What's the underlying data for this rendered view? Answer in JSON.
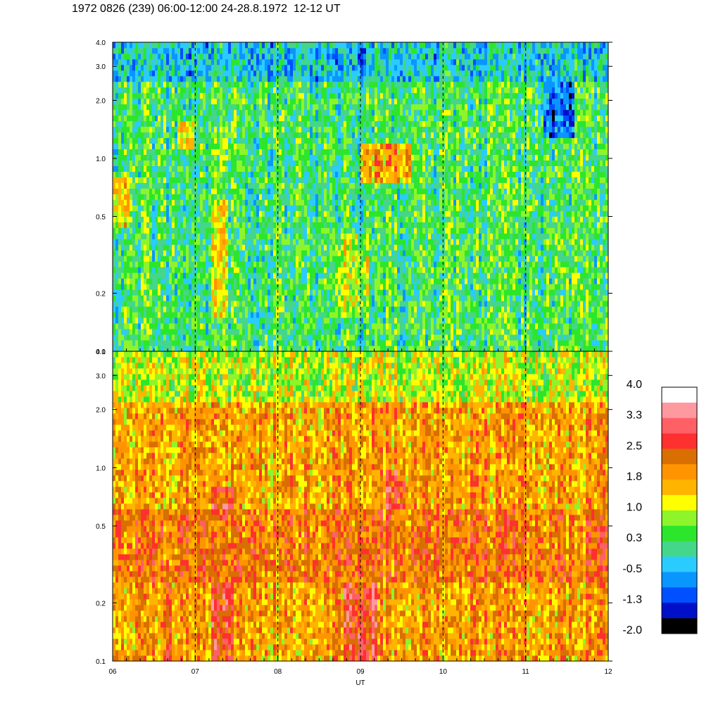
{
  "title": "1972 0826 (239) 06:00-12:00 24-28.8.1972  12-12 UT",
  "chart_data": [
    {
      "type": "heatmap",
      "panel": "top",
      "description_hint": "spectrogram, mostly green/yellow with blue streaks near top and yellow/orange bands",
      "y_scale": "log",
      "ylim": [
        0.1,
        4.0
      ],
      "y_ticks": [
        0.1,
        0.2,
        0.5,
        1.0,
        2.0,
        3.0,
        4.0
      ],
      "y_tick_labels": [
        "0.1",
        "0.2",
        "0.5",
        "1.0",
        "2.0",
        "3.0",
        "4.0"
      ],
      "xlim": [
        6,
        12
      ],
      "x_ticks": [
        6,
        7,
        8,
        9,
        10,
        11,
        12
      ],
      "grid": "dashed vertical lines at each hour",
      "base_level": 0.3,
      "features": [
        {
          "x_from": 6.0,
          "x_to": 6.2,
          "y_from": 0.45,
          "y_to": 0.8,
          "level": 1.5
        },
        {
          "x_from": 6.8,
          "x_to": 7.0,
          "y_from": 1.1,
          "y_to": 1.6,
          "level": 1.6
        },
        {
          "x_from": 9.0,
          "x_to": 9.6,
          "y_from": 0.75,
          "y_to": 1.2,
          "level": 1.8
        },
        {
          "x_from": 7.2,
          "x_to": 7.4,
          "y_from": 0.15,
          "y_to": 0.6,
          "level": 1.1
        },
        {
          "x_from": 8.7,
          "x_to": 9.1,
          "y_from": 0.15,
          "y_to": 0.4,
          "level": 1.0
        },
        {
          "x_from": 11.2,
          "x_to": 11.6,
          "y_from": 1.3,
          "y_to": 3.5,
          "level": -1.0
        },
        {
          "x_from": 6.0,
          "x_to": 12.0,
          "y_from": 2.5,
          "y_to": 4.0,
          "level": -0.3
        }
      ]
    },
    {
      "type": "heatmap",
      "panel": "bottom",
      "y_scale": "log",
      "ylim": [
        0.1,
        4.0
      ],
      "y_ticks": [
        0.1,
        0.2,
        0.5,
        1.0,
        2.0,
        3.0,
        4.0
      ],
      "y_tick_labels": [
        "0.1",
        "0.2",
        "0.5",
        "1.0",
        "2.0",
        "3.0",
        "4.0"
      ],
      "xlim": [
        6,
        12
      ],
      "x_ticks": [
        6,
        7,
        8,
        9,
        10,
        11,
        12
      ],
      "x_tick_labels": [
        "06",
        "07",
        "08",
        "09",
        "10",
        "11",
        "12"
      ],
      "xlabel": "UT",
      "grid": "dashed vertical lines at each hour",
      "base_level": 1.8,
      "features": [
        {
          "x_from": 6.0,
          "x_to": 12.0,
          "y_from": 2.2,
          "y_to": 4.0,
          "level": 1.0
        },
        {
          "x_from": 7.2,
          "x_to": 7.45,
          "y_from": 0.1,
          "y_to": 0.8,
          "level": 2.6
        },
        {
          "x_from": 8.8,
          "x_to": 9.2,
          "y_from": 0.1,
          "y_to": 0.35,
          "level": 2.6
        },
        {
          "x_from": 9.3,
          "x_to": 9.55,
          "y_from": 0.6,
          "y_to": 1.0,
          "level": 2.6
        },
        {
          "x_from": 6.6,
          "x_to": 6.7,
          "y_from": 0.1,
          "y_to": 0.3,
          "level": 2.6
        },
        {
          "x_from": 6.0,
          "x_to": 12.0,
          "y_from": 0.25,
          "y_to": 0.6,
          "level": 2.2
        }
      ]
    }
  ],
  "colorbar": {
    "labels": [
      "4.0",
      "3.3",
      "2.5",
      "1.8",
      "1.0",
      "0.3",
      "-0.5",
      "-1.3",
      "-2.0"
    ],
    "colors": [
      "#ffffff",
      "#ff99a0",
      "#ff6066",
      "#ff3030",
      "#d86f00",
      "#ff9400",
      "#ffb400",
      "#ffff00",
      "#8ef52a",
      "#2ce62c",
      "#44d68a",
      "#2accff",
      "#0a96ff",
      "#0050ff",
      "#0010c8",
      "#000000"
    ],
    "min": -2.0,
    "max": 4.0
  }
}
